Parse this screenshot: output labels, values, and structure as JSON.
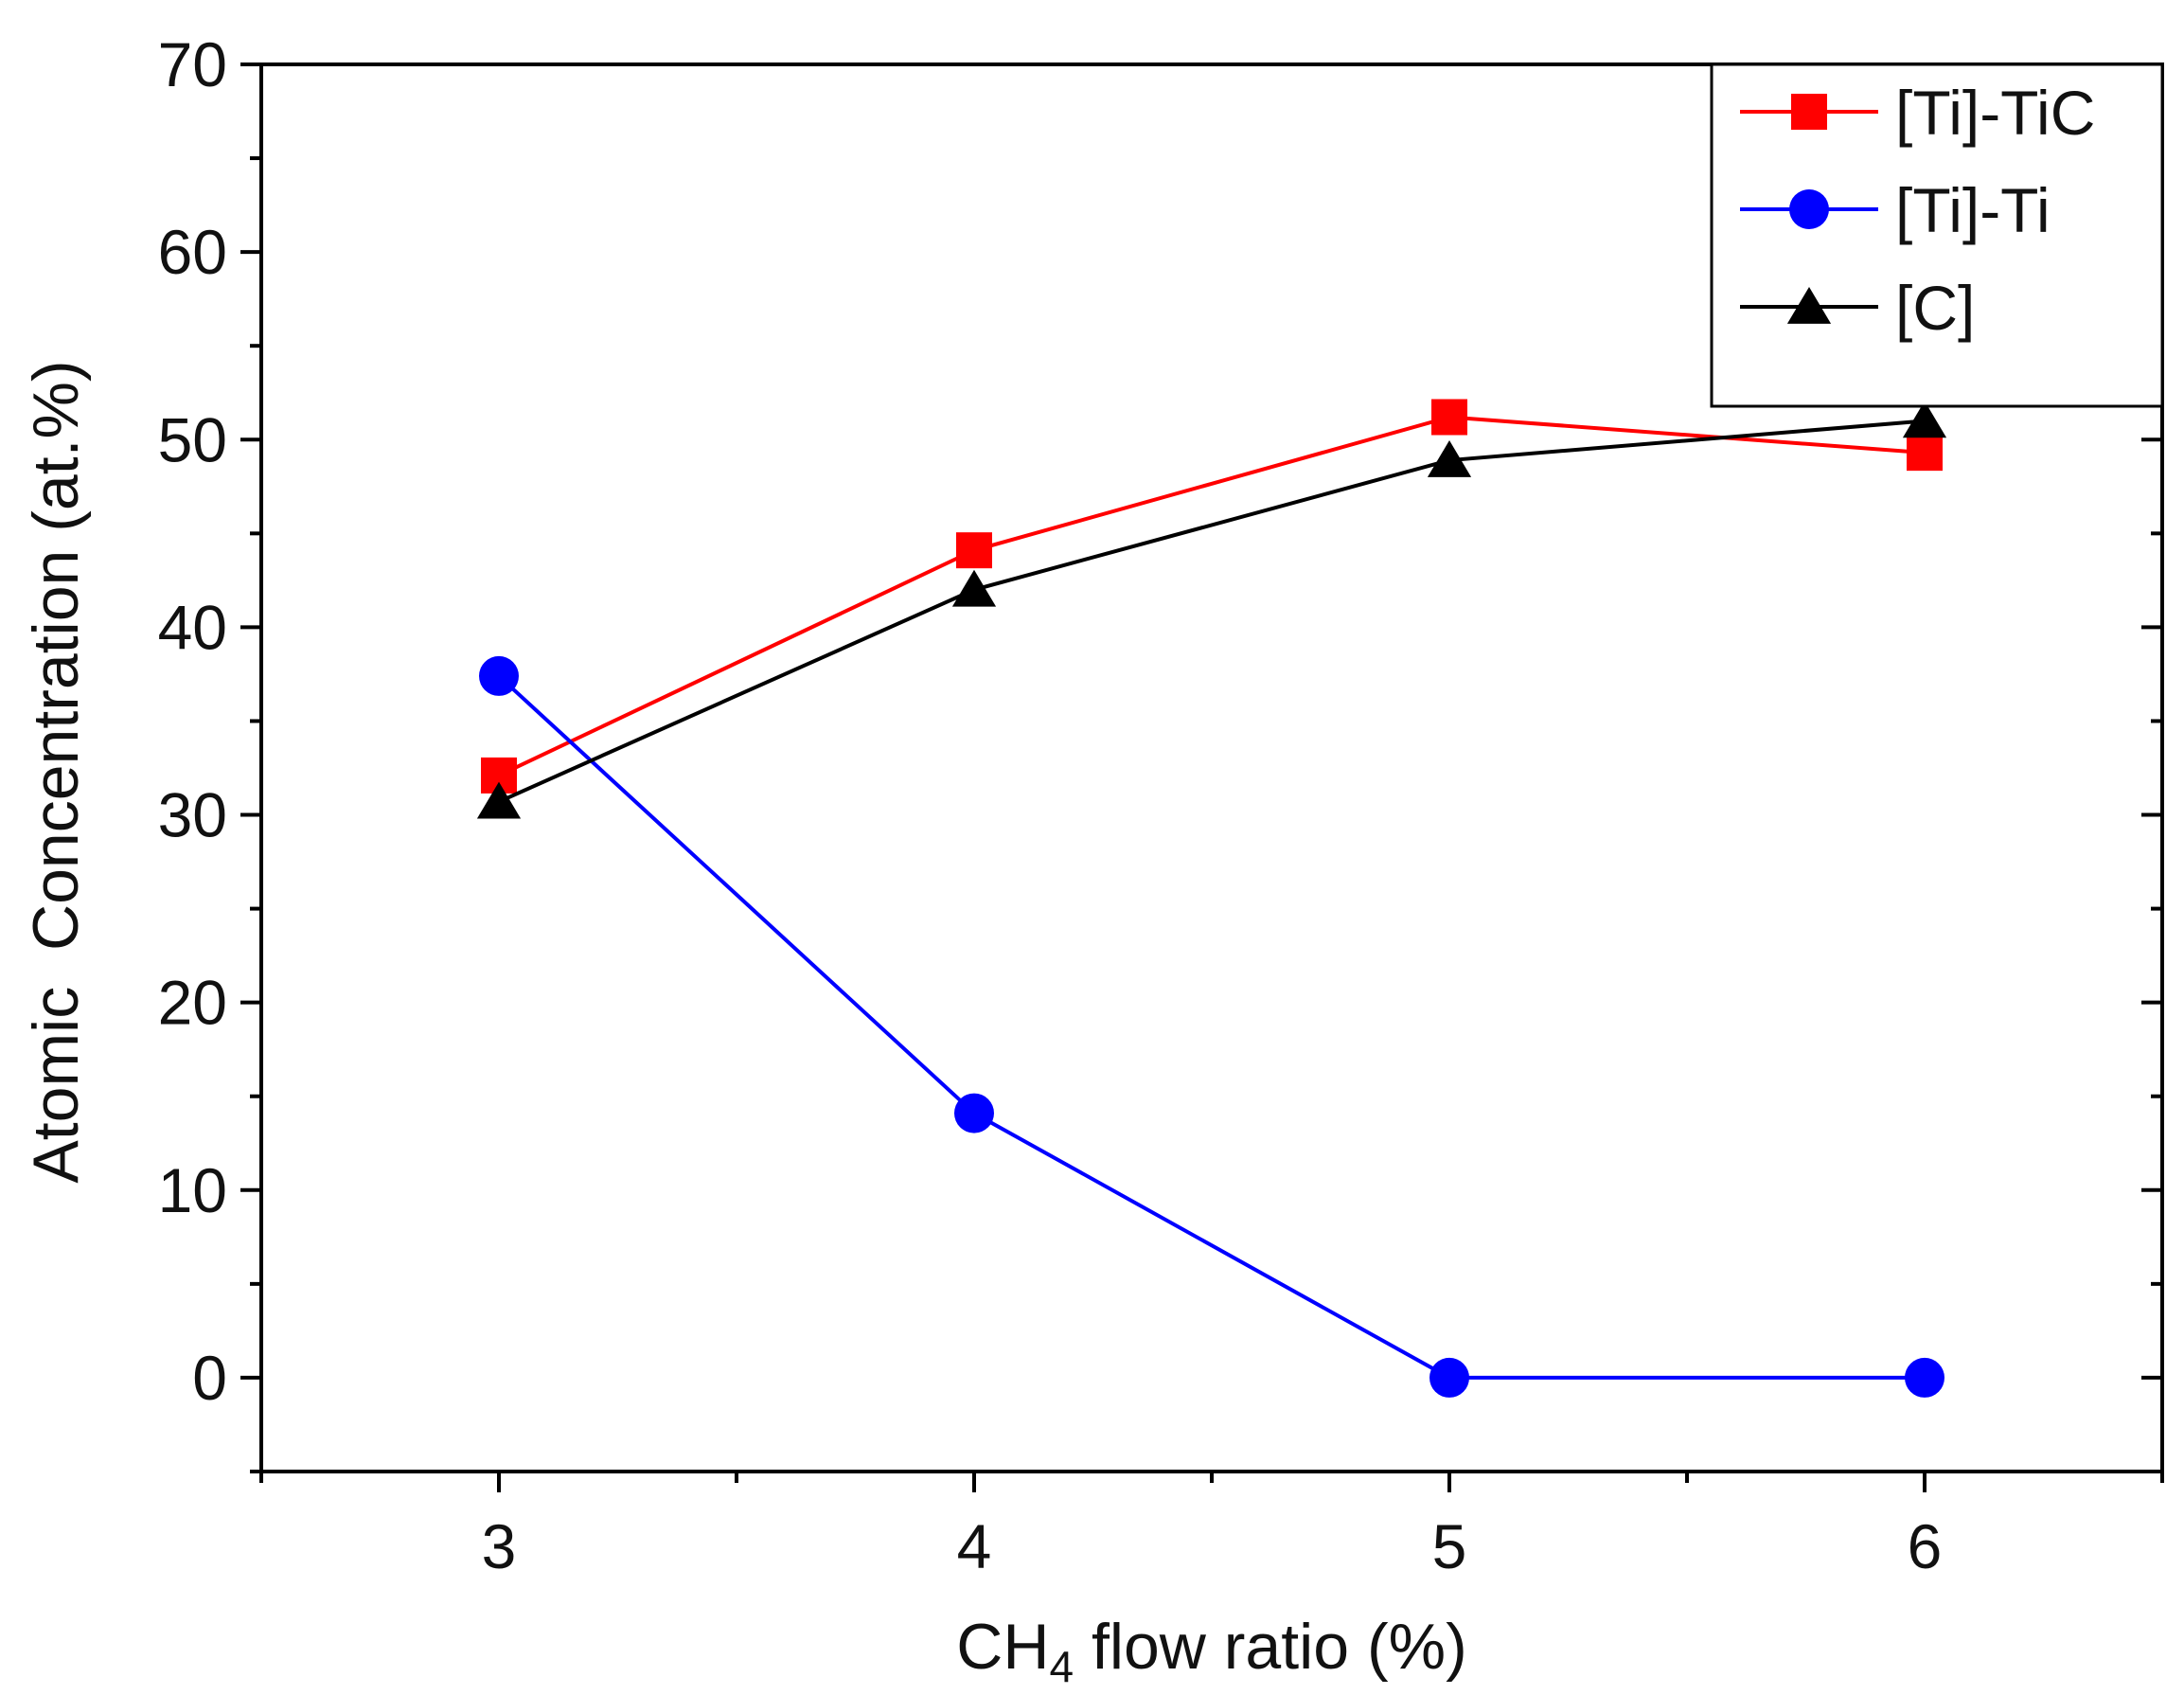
{
  "chart_data": {
    "type": "line",
    "title": "",
    "xlabel": "CH4 flow ratio (%)",
    "xlabel_main": "CH",
    "xlabel_sub": "4",
    "xlabel_rest": " flow ratio (%)",
    "ylabel": "Atomic  Concentration (at.%)",
    "xlim": [
      2.5,
      6.5
    ],
    "ylim": [
      -5,
      70
    ],
    "xticks": [
      3,
      4,
      5,
      6
    ],
    "xtick_labels": [
      "3",
      "4",
      "5",
      "6"
    ],
    "yticks": [
      0,
      10,
      20,
      30,
      40,
      50,
      60,
      70
    ],
    "ytick_labels": [
      "0",
      "10",
      "20",
      "30",
      "40",
      "50",
      "60",
      "70"
    ],
    "legend_position": "top-right",
    "grid": false,
    "x": [
      3,
      4,
      5,
      6
    ],
    "series": [
      {
        "name": "[Ti]-TiC",
        "values": [
          32.1,
          44.1,
          51.2,
          49.3
        ],
        "color": "#ff0000",
        "marker": "square"
      },
      {
        "name": "[Ti]-Ti",
        "values": [
          37.4,
          14.1,
          0,
          0
        ],
        "color": "#0000ff",
        "marker": "circle"
      },
      {
        "name": "[C]",
        "values": [
          30.7,
          42.0,
          48.9,
          51.0
        ],
        "color": "#000000",
        "marker": "triangle"
      }
    ]
  }
}
